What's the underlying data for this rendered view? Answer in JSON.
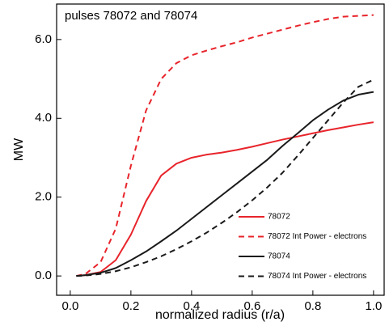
{
  "chart_data": {
    "type": "line",
    "title": "pulses 78072 and 78074",
    "x_label": "normalized radius (r/a)",
    "y_label": "MW",
    "x": [
      0.02,
      0.05,
      0.1,
      0.15,
      0.2,
      0.25,
      0.3,
      0.35,
      0.4,
      0.45,
      0.5,
      0.55,
      0.6,
      0.65,
      0.7,
      0.75,
      0.8,
      0.85,
      0.9,
      0.95,
      1.0
    ],
    "series": [
      {
        "name": "78072",
        "color": "#e8242b",
        "dashed": false,
        "values": [
          0,
          0.02,
          0.1,
          0.4,
          1.05,
          1.9,
          2.55,
          2.85,
          3.0,
          3.08,
          3.13,
          3.2,
          3.28,
          3.37,
          3.46,
          3.54,
          3.62,
          3.7,
          3.77,
          3.84,
          3.9
        ]
      },
      {
        "name": "78072 Int Power - electrons",
        "color": "#e8242b",
        "dashed": true,
        "values": [
          0,
          0.05,
          0.35,
          1.2,
          2.8,
          4.2,
          5.0,
          5.4,
          5.6,
          5.72,
          5.83,
          5.93,
          6.05,
          6.15,
          6.25,
          6.35,
          6.44,
          6.52,
          6.58,
          6.6,
          6.62
        ]
      },
      {
        "name": "78074",
        "color": "#1a1a1a",
        "dashed": false,
        "values": [
          0,
          0.02,
          0.08,
          0.2,
          0.4,
          0.62,
          0.88,
          1.15,
          1.45,
          1.75,
          2.05,
          2.35,
          2.65,
          2.95,
          3.3,
          3.62,
          3.95,
          4.22,
          4.45,
          4.6,
          4.67
        ]
      },
      {
        "name": "78074 Int Power - electrons",
        "color": "#1a1a1a",
        "dashed": true,
        "values": [
          0,
          0.01,
          0.05,
          0.12,
          0.22,
          0.35,
          0.5,
          0.68,
          0.88,
          1.1,
          1.35,
          1.62,
          1.92,
          2.25,
          2.62,
          3.05,
          3.5,
          3.95,
          4.4,
          4.8,
          4.98
        ]
      }
    ],
    "xlim": [
      -0.045,
      1.035
    ],
    "xticks": [
      {
        "value": 0,
        "label": "0.0"
      },
      0.2,
      0.4,
      0.6,
      0.8,
      {
        "value": 1,
        "label": "1.0"
      }
    ],
    "ylim": [
      -0.49,
      6.9
    ],
    "yticks": [
      {
        "value": 0,
        "label": "0.0"
      },
      {
        "value": 2,
        "label": "2.0"
      },
      {
        "value": 4,
        "label": "4.0"
      },
      {
        "value": 6,
        "label": "6.0"
      }
    ],
    "legend_position": "lower right"
  }
}
